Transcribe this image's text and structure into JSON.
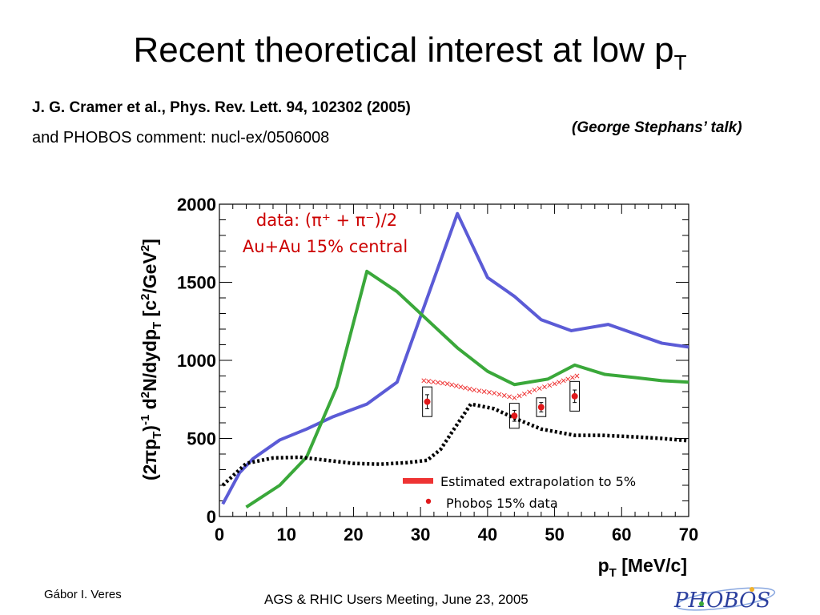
{
  "slide": {
    "title": "Recent theoretical interest at low p",
    "title_sub": "T",
    "reference_line1": "J. G. Cramer et al., Phys. Rev. Lett. 94, 102302 (2005)",
    "reference_line2": "and PHOBOS comment: nucl-ex/0506008",
    "talk_note": "(George Stephans’ talk)",
    "author": "Gábor I. Veres",
    "meeting": "AGS & RHIC Users Meeting, June 23, 2005",
    "logo_text": "PHOBOS"
  },
  "colors": {
    "blue_curve": "#5b5bd6",
    "green_curve": "#3aa83a",
    "data_red": "#e0191b",
    "extrapolation_red": "#ee3333",
    "annotation_red": "#cc0000",
    "dotted_curve": "#000000"
  },
  "chart_data": {
    "type": "line",
    "xlabel": "p",
    "xlabel_sub": "T",
    "xlabel_unit": " [MeV/c]",
    "ylabel": "(2πp_T)^-1 d^2N/dydp_T [c^2/GeV^2]",
    "xlim": [
      0,
      70
    ],
    "ylim": [
      0,
      2000
    ],
    "x_ticks": [
      0,
      10,
      20,
      30,
      40,
      50,
      60,
      70
    ],
    "y_ticks": [
      0,
      500,
      1000,
      1500,
      2000
    ],
    "grid": false,
    "annotation": {
      "line1": "data: (π⁺ + π⁻)/2",
      "line2": "Au+Au 15% central"
    },
    "series": [
      {
        "style": "solid",
        "color": "#5b5bd6",
        "x": [
          0.5,
          3,
          5,
          9,
          13,
          17,
          22,
          26.5,
          31,
          35.5,
          40,
          44,
          48,
          52.5,
          58,
          62,
          66,
          70
        ],
        "y": [
          80,
          280,
          370,
          490,
          560,
          640,
          720,
          860,
          1400,
          1940,
          1530,
          1410,
          1260,
          1190,
          1230,
          1170,
          1110,
          1085
        ]
      },
      {
        "style": "solid",
        "color": "#3aa83a",
        "x": [
          4,
          9,
          13,
          17.5,
          22,
          26.5,
          31,
          35.5,
          40,
          44,
          49,
          53,
          57.5,
          62,
          66,
          70
        ],
        "y": [
          60,
          200,
          380,
          830,
          1570,
          1440,
          1260,
          1080,
          930,
          845,
          880,
          970,
          910,
          890,
          870,
          860
        ]
      },
      {
        "style": "dotted",
        "color": "#000000",
        "x": [
          0.5,
          4,
          8,
          12,
          16,
          20,
          24,
          28,
          31,
          33,
          35,
          37.5,
          41,
          44,
          48,
          53,
          57,
          62,
          66,
          70
        ],
        "y": [
          200,
          340,
          375,
          380,
          360,
          340,
          335,
          345,
          360,
          430,
          560,
          720,
          690,
          630,
          560,
          520,
          520,
          510,
          500,
          485
        ]
      },
      {
        "name": "Estimated extrapolation to 5%",
        "style": "crosses",
        "color": "#ee3333",
        "x": [
          30.5,
          34,
          38,
          41,
          44,
          47,
          50,
          54
        ],
        "y": [
          870,
          850,
          810,
          790,
          760,
          810,
          850,
          910
        ]
      },
      {
        "name": "Phobos 15% data",
        "style": "points",
        "color": "#e0191b",
        "x": [
          31,
          44,
          48,
          53
        ],
        "y": [
          735,
          645,
          700,
          770
        ],
        "err": [
          45,
          35,
          30,
          40
        ],
        "sys_box_halfwidth_x": [
          0.7,
          0.7,
          0.7,
          0.7
        ],
        "sys_box_halfheight_y": [
          95,
          80,
          60,
          95
        ]
      }
    ],
    "legend": {
      "placement": "bottom-right",
      "entries": [
        "Estimated extrapolation to 5%",
        "Phobos 15% data"
      ]
    }
  }
}
